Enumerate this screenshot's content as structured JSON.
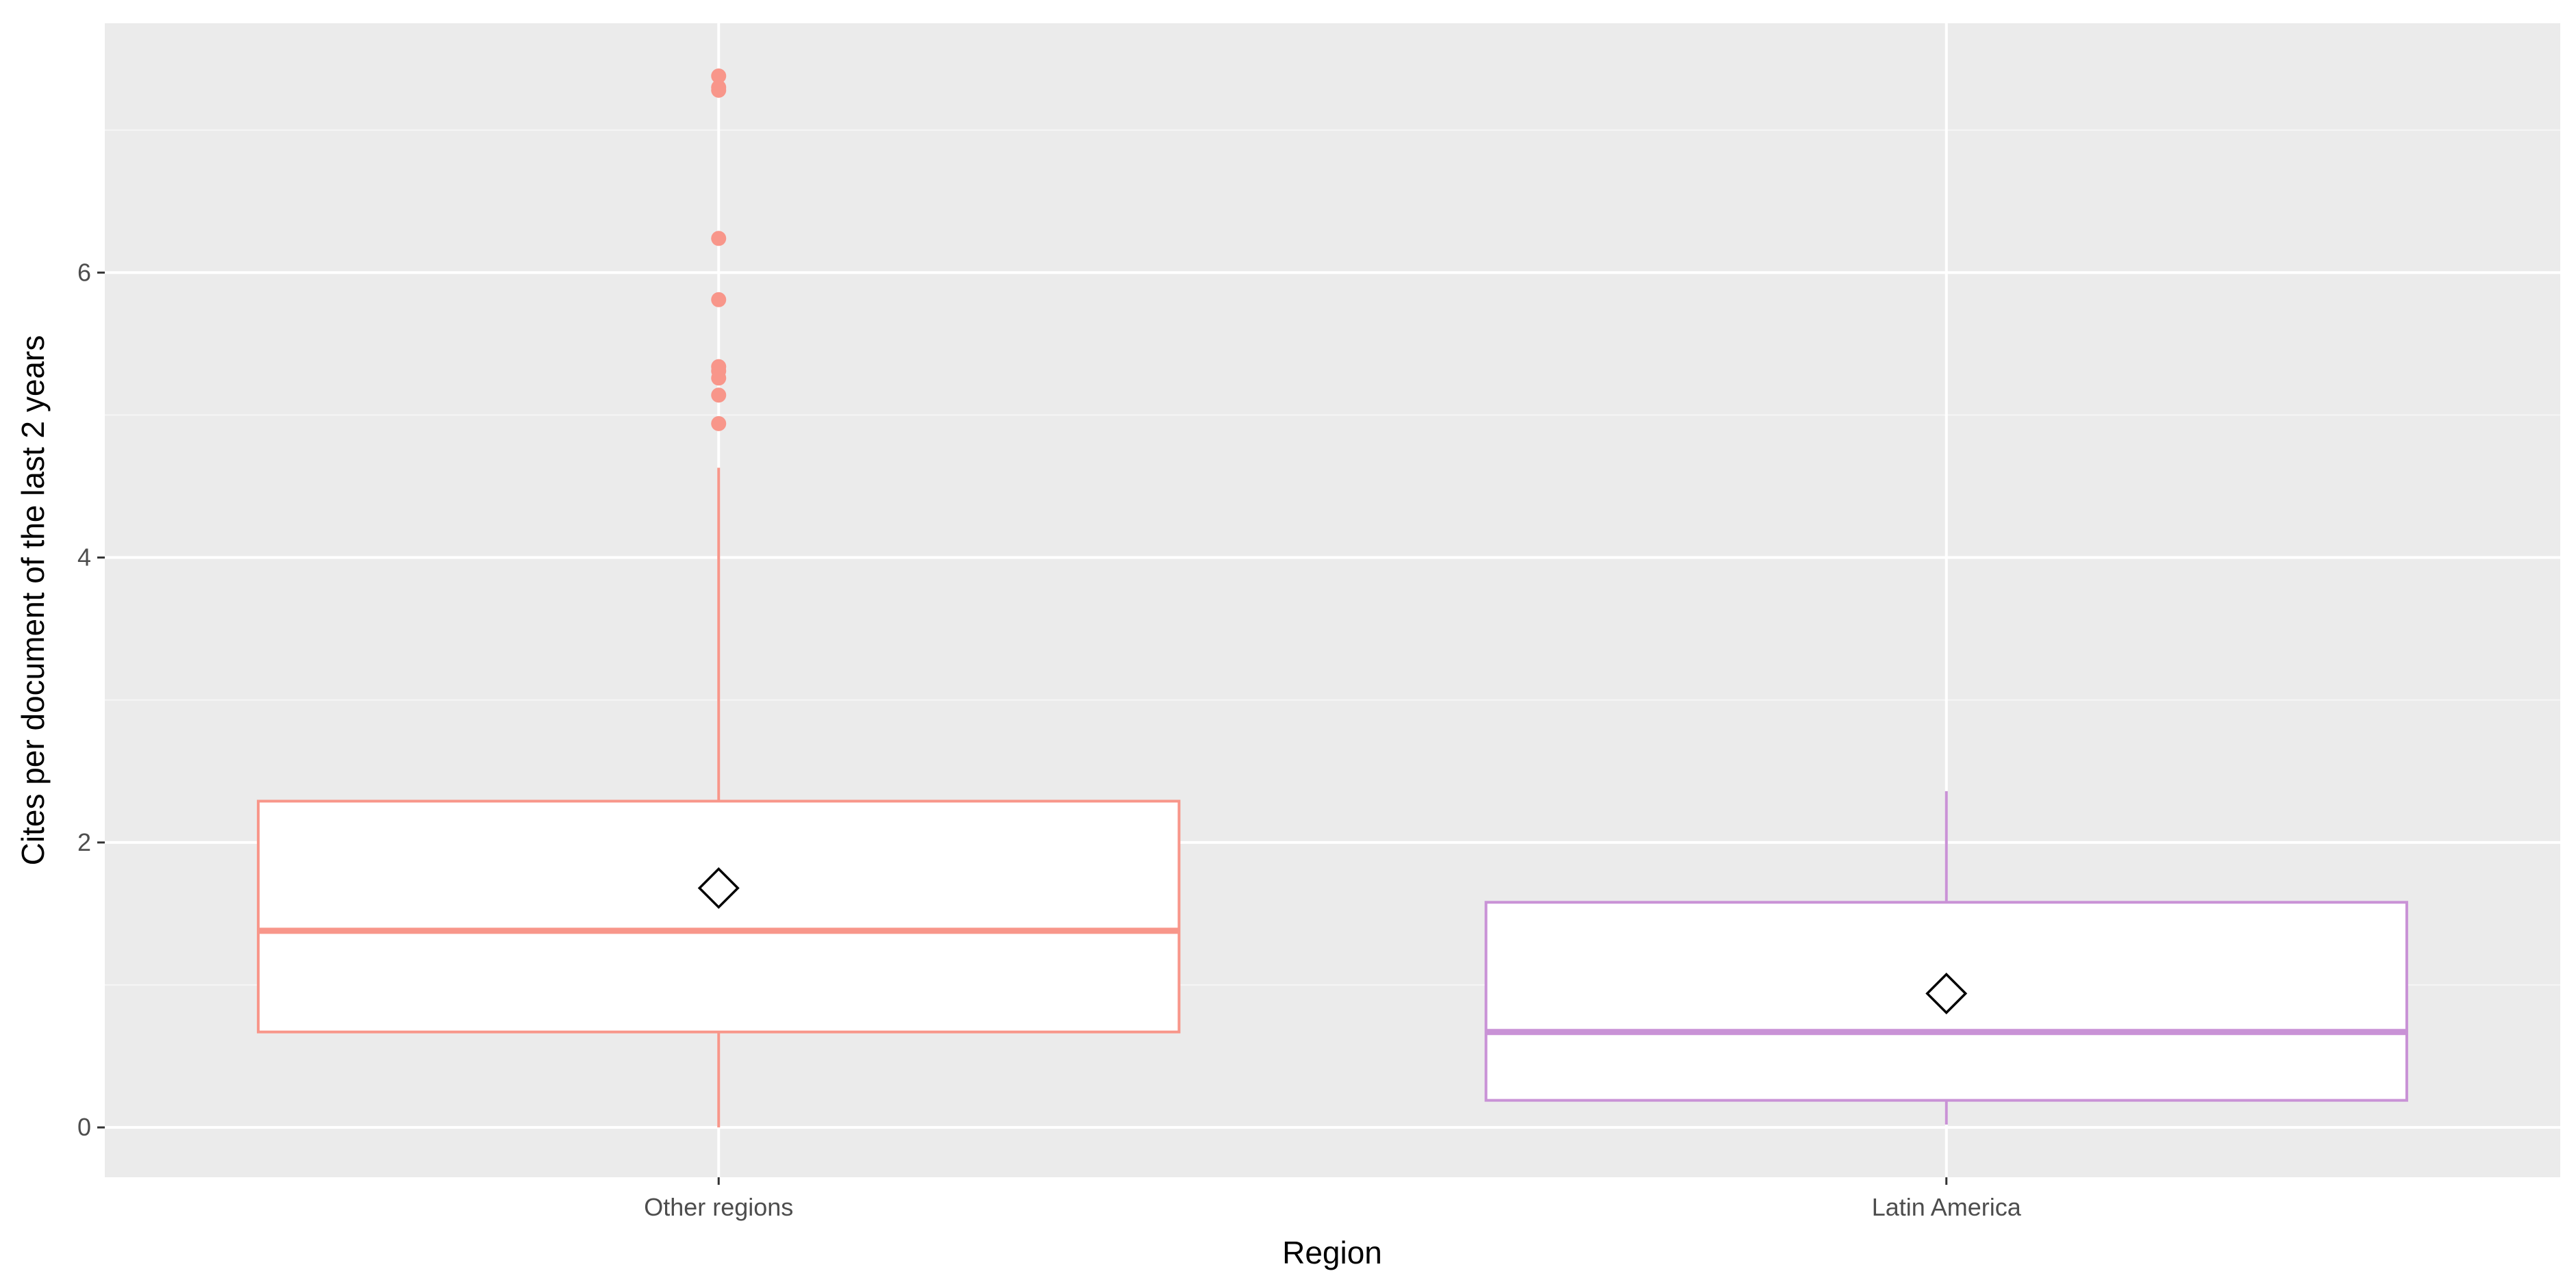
{
  "chart_data": {
    "type": "boxplot",
    "title": "",
    "xlabel": "Region",
    "ylabel": "Cites per document of the last 2 years",
    "ylim": [
      -0.35,
      7.75
    ],
    "yticks": [
      0,
      2,
      4,
      6
    ],
    "grid": true,
    "legend": "none",
    "categories": [
      "Other regions",
      "Latin America"
    ],
    "series": [
      {
        "category": "Other regions",
        "color": "#F8968A",
        "whisker_low": 0.0,
        "q1": 0.67,
        "median": 1.38,
        "q3": 2.29,
        "whisker_high": 4.63,
        "mean": 1.68,
        "outliers": [
          4.94,
          5.14,
          5.26,
          5.31,
          5.34,
          5.81,
          6.24,
          7.28,
          7.3,
          7.38
        ]
      },
      {
        "category": "Latin America",
        "color": "#C992D6",
        "whisker_low": 0.02,
        "q1": 0.19,
        "median": 0.67,
        "q3": 1.58,
        "whisker_high": 2.36,
        "mean": 0.94,
        "outliers": []
      }
    ]
  },
  "colors": {
    "panel_background": "#EBEBEB",
    "grid_major": "#FFFFFF",
    "grid_minor": "#F5F5F5"
  }
}
